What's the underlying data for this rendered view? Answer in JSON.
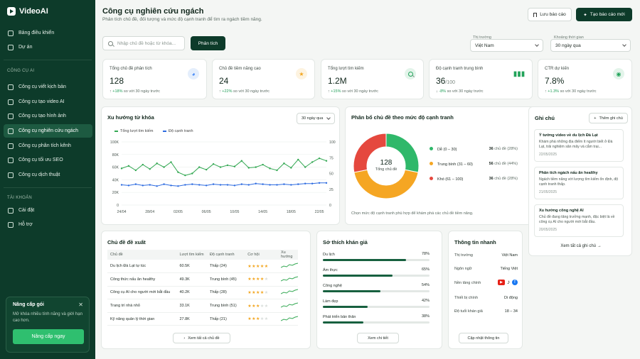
{
  "brand": {
    "name": "VideoAI"
  },
  "sidebar": {
    "main_items": [
      {
        "label": "Bảng điều khiển"
      },
      {
        "label": "Dự án"
      }
    ],
    "tools_heading": "CÔNG CỤ AI",
    "tools": [
      {
        "label": "Công cụ viết kịch bản"
      },
      {
        "label": "Công cụ tạo video AI"
      },
      {
        "label": "Công cụ tạo hình ảnh"
      },
      {
        "label": "Công cụ nghiên cứu ngách"
      },
      {
        "label": "Công cụ phân tích kênh"
      },
      {
        "label": "Công cụ tối ưu SEO"
      },
      {
        "label": "Công cụ dịch thuật"
      }
    ],
    "account_heading": "TÀI KHOẢN",
    "account": [
      {
        "label": "Cài đặt"
      },
      {
        "label": "Hỗ trợ"
      }
    ],
    "upgrade": {
      "title": "Nâng cấp gói",
      "text": "Mở khóa nhiều tính năng và giới hạn cao hơn.",
      "button": "Nâng cấp ngay"
    }
  },
  "header": {
    "title": "Công cụ nghiên cứu ngách",
    "subtitle": "Phân tích chủ đề, đối tượng và mức độ cạnh tranh để tìm ra ngách tiềm năng.",
    "save_report": "Lưu báo cáo",
    "new_report": "Tạo báo cáo mới"
  },
  "search": {
    "placeholder": "Nhập chủ đề hoặc từ khóa...",
    "analyze": "Phân tích"
  },
  "filters": {
    "market_label": "Thị trường",
    "market_value": "Việt Nam",
    "time_label": "Khoảng thời gian",
    "time_value": "30 ngày qua"
  },
  "stats": [
    {
      "label": "Tổng chủ đề phân tích",
      "value": "128",
      "delta": "+18%",
      "delta_text": "so với 30 ngày trước",
      "icon": "pie-icon",
      "color": "#3b82f6"
    },
    {
      "label": "Chủ đề tiềm năng cao",
      "value": "24",
      "delta": "+22%",
      "delta_text": "so với 30 ngày trước",
      "icon": "star-icon",
      "color": "#f2a51e"
    },
    {
      "label": "Tổng lượt tìm kiếm",
      "value": "1.2M",
      "delta": "+15%",
      "delta_text": "so với 30 ngày trước",
      "icon": "search-icon",
      "color": "#22a35a"
    },
    {
      "label": "Độ cạnh tranh trung bình",
      "value": "36",
      "value_suffix": "/100",
      "delta": "-8%",
      "delta_text": "so với 30 ngày trước",
      "icon": "bar-chart-icon",
      "color": "#22a35a"
    },
    {
      "label": "CTR dự kiến",
      "value": "7.8%",
      "delta": "+1.3%",
      "delta_text": "so với 30 ngày trước",
      "icon": "target-icon",
      "color": "#22a35a"
    }
  ],
  "trend": {
    "title": "Xu hướng từ khóa",
    "range": "30 ngày qua",
    "legend_search": "Tổng lượt tìm kiếm",
    "legend_competition": "Độ cạnh tranh"
  },
  "distribution": {
    "title": "Phân bổ chủ đề theo mức độ cạnh tranh",
    "total": "128",
    "total_label": "Tổng chủ đề",
    "items": [
      {
        "label": "Dễ (0 – 30)",
        "count": "36",
        "text": "chủ đề (28%)",
        "color": "#2fb86a"
      },
      {
        "label": "Trung bình (31 – 60)",
        "count": "56",
        "text": "chủ đề (44%)",
        "color": "#f5a623"
      },
      {
        "label": "Khó (61 – 100)",
        "count": "36",
        "text": "chủ đề (28%)",
        "color": "#e5483e"
      }
    ],
    "footer": "Chọn mức độ cạnh tranh phù hợp để khám phá các chủ đề tiềm năng."
  },
  "notes": {
    "title": "Ghi chú",
    "add": "Thêm ghi chú",
    "items": [
      {
        "title": "Ý tưởng video về du lịch Đà Lạt",
        "body": "Khám phá những địa điểm ít người biết ở Đà Lạt, trải nghiệm săn mây và cắm trại...",
        "date": "22/05/2025"
      },
      {
        "title": "Phân tích ngách nấu ăn healthy",
        "body": "Ngách tiềm năng với lượng tìm kiếm ổn định, độ cạnh tranh thấp.",
        "date": "21/05/2025"
      },
      {
        "title": "Xu hướng công nghệ AI",
        "body": "Chủ đề đang tăng trưởng mạnh, đặc biệt là về công cụ AI cho người mới bắt đầu.",
        "date": "20/05/2025"
      }
    ],
    "view_all": "Xem tất cả ghi chú"
  },
  "topics": {
    "title": "Chủ đề đề xuất",
    "columns": [
      "Chủ đề",
      "Lượt tìm kiếm",
      "Độ cạnh tranh",
      "Cơ hội",
      "Xu hướng"
    ],
    "rows": [
      {
        "topic": "Du lịch Đà Lạt tự túc",
        "searches": "60.5K",
        "competition": "Thấp (24)",
        "stars": 5
      },
      {
        "topic": "Công thức nấu ăn healthy",
        "searches": "49.3K",
        "competition": "Trung bình (45)",
        "stars": 4
      },
      {
        "topic": "Công cụ AI cho người mới bắt đầu",
        "searches": "40.2K",
        "competition": "Thấp (28)",
        "stars": 4
      },
      {
        "topic": "Trang trí nhà nhỏ",
        "searches": "33.1K",
        "competition": "Trung bình (51)",
        "stars": 3
      },
      {
        "topic": "Kỹ năng quản lý thời gian",
        "searches": "27.8K",
        "competition": "Thấp (21)",
        "stars": 3
      }
    ],
    "view_all": "Xem tất cả chủ đề"
  },
  "interests": {
    "title": "Sở thích khán giả",
    "items": [
      {
        "label": "Du lịch",
        "pct": "78%",
        "value": 78
      },
      {
        "label": "Ẩm thực",
        "pct": "65%",
        "value": 65
      },
      {
        "label": "Công nghệ",
        "pct": "54%",
        "value": 54
      },
      {
        "label": "Làm đẹp",
        "pct": "42%",
        "value": 42
      },
      {
        "label": "Phát triển bản thân",
        "pct": "38%",
        "value": 38
      }
    ],
    "view_detail": "Xem chi tiết"
  },
  "quick_info": {
    "title": "Thông tin nhanh",
    "rows": [
      {
        "label": "Thị trường",
        "value": "Việt Nam"
      },
      {
        "label": "Ngôn ngữ",
        "value": "Tiếng Việt"
      },
      {
        "label": "Nền tảng chính",
        "value": ""
      },
      {
        "label": "Thiết bị chính",
        "value": "Di động"
      },
      {
        "label": "Độ tuổi khán giả",
        "value": "18 – 34"
      }
    ],
    "update": "Cập nhật thông tin"
  },
  "chart_data": {
    "type": "line",
    "title": "Xu hướng từ khóa",
    "x": [
      "24/04",
      "25/04",
      "26/04",
      "27/04",
      "28/04",
      "29/04",
      "30/04",
      "01/05",
      "02/05",
      "03/05",
      "04/05",
      "05/05",
      "06/05",
      "07/05",
      "08/05",
      "09/05",
      "10/05",
      "11/05",
      "12/05",
      "13/05",
      "14/05",
      "15/05",
      "16/05",
      "17/05",
      "18/05",
      "19/05",
      "20/05",
      "21/05",
      "22/05",
      "23/05"
    ],
    "x_ticks": [
      "24/04",
      "28/04",
      "02/05",
      "06/05",
      "10/05",
      "14/05",
      "18/05",
      "22/05"
    ],
    "y_left_ticks": [
      "100K",
      "80K",
      "60K",
      "40K",
      "20K",
      "0"
    ],
    "y_right_ticks": [
      "100",
      "75",
      "50",
      "25",
      "0"
    ],
    "ylim_left": [
      0,
      100000
    ],
    "ylim_right": [
      0,
      100
    ],
    "series": [
      {
        "name": "Tổng lượt tìm kiếm",
        "axis": "left",
        "color": "#34a853",
        "values": [
          58000,
          62000,
          55000,
          64000,
          57000,
          66000,
          60000,
          68000,
          52000,
          47000,
          50000,
          60000,
          56000,
          65000,
          60000,
          63000,
          61000,
          70000,
          59000,
          60000,
          64000,
          58000,
          55000,
          66000,
          59000,
          72000,
          60000,
          68000,
          74000,
          70000
        ]
      },
      {
        "name": "Độ cạnh tranh",
        "axis": "right",
        "color": "#2d6be0",
        "values": [
          32,
          31,
          33,
          31,
          32,
          30,
          33,
          31,
          30,
          32,
          33,
          32,
          31,
          33,
          32,
          32,
          31,
          33,
          32,
          34,
          33,
          32,
          32,
          33,
          32,
          33,
          34,
          34,
          35,
          35
        ]
      }
    ],
    "grid": true,
    "legend": "top-left"
  }
}
